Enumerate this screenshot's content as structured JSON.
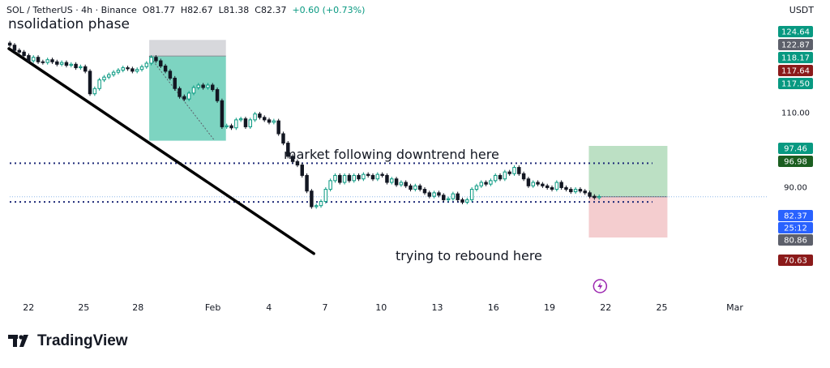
{
  "header": {
    "symbol": "SOL / TetherUS · 4h · Binance",
    "open": "O81.77",
    "high": "H82.67",
    "low": "L81.38",
    "close": "C82.37",
    "change": "+0.60 (+0.73%)",
    "currency": "USDT"
  },
  "annotations": {
    "top_left": "nsolidation phase",
    "downtrend": "market following downtrend here",
    "rebound": "trying to rebound here"
  },
  "brand": {
    "name": "TradingView"
  },
  "colors": {
    "up": "#089981",
    "down": "#131722",
    "long_target_zone": "#a5d6b0",
    "stop_zone": "#f2c4c7",
    "teal_zone": "#5cc9b1",
    "trendline": "#000000",
    "dotted_level": "#1e2a78",
    "marker": "#9c27b0"
  },
  "chart_data": {
    "type": "candlestick",
    "x_tick_labels": [
      "22",
      "25",
      "28",
      "Feb",
      "4",
      "7",
      "10",
      "13",
      "16",
      "19",
      "22",
      "25",
      "Mar"
    ],
    "price_scale_labels": [
      {
        "value": "124.64",
        "color": "#089981"
      },
      {
        "value": "122.87",
        "color": "#5d606b"
      },
      {
        "value": "118.17",
        "color": "#089981"
      },
      {
        "value": "117.64",
        "color": "#8b1a1a"
      },
      {
        "value": "117.50",
        "color": "#089981"
      },
      {
        "value": "110.00",
        "color": ""
      },
      {
        "value": "97.46",
        "color": "#089981"
      },
      {
        "value": "96.98",
        "color": "#1b5e20"
      },
      {
        "value": "90.00",
        "color": ""
      },
      {
        "value": "82.37",
        "color": "#2962ff"
      },
      {
        "value": "25:12",
        "color": "#2962ff"
      },
      {
        "value": "80.86",
        "color": "#5d606b"
      },
      {
        "value": "70.63",
        "color": "#8b1a1a"
      }
    ],
    "ylim": [
      62,
      132
    ],
    "levels": [
      92,
      80.86
    ],
    "current_price": 82.37,
    "trendline": [
      {
        "day": 0,
        "price": 125
      },
      {
        "day": 16.3,
        "price": 66
      }
    ],
    "consolidation_box": {
      "day_start": 7.5,
      "day_end": 11.6,
      "entry": 122.87,
      "target": 98.5,
      "top": 127.5
    },
    "position_box": {
      "day_start": 31.0,
      "day_end": 35.2,
      "entry": 82.37,
      "target": 97.0,
      "stop": 70.63
    },
    "marker_day": 31.6,
    "closes": [
      126,
      124.5,
      124,
      123,
      121.5,
      122.5,
      121.2,
      121,
      121.8,
      121.2,
      120.5,
      121,
      120.2,
      120.5,
      119.5,
      119.8,
      118.5,
      112,
      113.5,
      116,
      116.8,
      117.5,
      118.2,
      118.8,
      119.5,
      119.2,
      118.5,
      119,
      119.8,
      120.8,
      122.5,
      121.5,
      120,
      118.5,
      116.5,
      113.5,
      111.2,
      110.5,
      112.2,
      113.8,
      114.5,
      113.8,
      114.5,
      113.2,
      110,
      102.5,
      102.8,
      102.2,
      104.5,
      104.8,
      102.5,
      104.5,
      106.2,
      105.2,
      104.5,
      103.8,
      104.2,
      100.5,
      97.8,
      94,
      92.5,
      91.5,
      88.5,
      84,
      79.5,
      79.8,
      81,
      84.5,
      87,
      88.5,
      86.5,
      88.5,
      87,
      88.5,
      87.5,
      88.8,
      88.5,
      87.5,
      88.8,
      88.5,
      86.5,
      87.5,
      85.8,
      86.5,
      85.5,
      84.5,
      85.5,
      84.5,
      83.5,
      82.5,
      83.5,
      82.8,
      81.5,
      81.8,
      83.2,
      81.5,
      80.8,
      81.5,
      84.5,
      85.5,
      86.5,
      86,
      87,
      88.5,
      87.5,
      89.5,
      89,
      90.8,
      89,
      87.5,
      85.5,
      86.5,
      86,
      85.5,
      85,
      84.5,
      86.5,
      85,
      84.5,
      83.8,
      84.5,
      84,
      83.5,
      82.5,
      82.1,
      82.4
    ]
  }
}
